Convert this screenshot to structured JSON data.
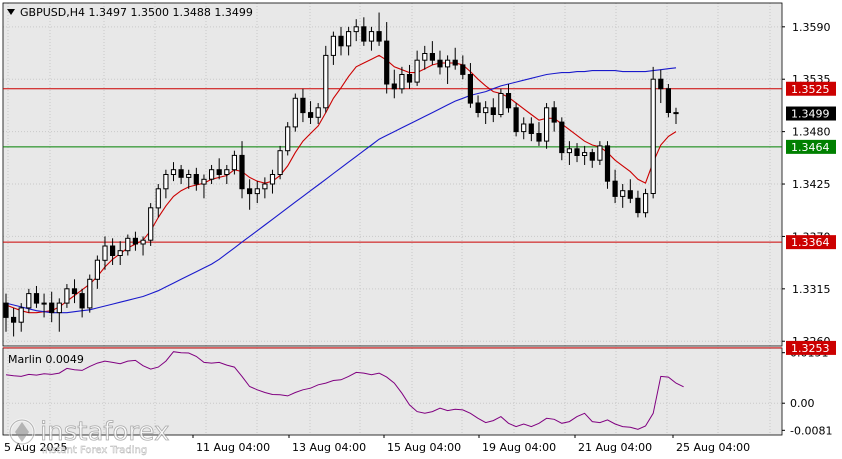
{
  "header": {
    "symbol_line": "GBPUSD,H4  1.3497 1.3500 1.3488 1.3499"
  },
  "indicator": {
    "label": "Marlin 0.0049"
  },
  "watermark": {
    "brand": "instaforex",
    "tagline": "Instant Forex Trading"
  },
  "colors": {
    "background": "#ffffff",
    "plot_background": "#e8e8e8",
    "grid": "#c9c9c9",
    "candle": "#000000",
    "ma_fast": "#cc0000",
    "ma_slow": "#1a1acc",
    "level_red": "#cc0000",
    "level_green": "#008000",
    "oscillator": "#800080"
  },
  "chart_data": [
    {
      "type": "candlestick",
      "title": "GBPUSD,H4",
      "ohlc_header": {
        "open": 1.3497,
        "high": 1.35,
        "low": 1.3488,
        "close": 1.3499
      },
      "ylim": [
        1.3255,
        1.3615
      ],
      "y_ticks": [
        1.359,
        1.3535,
        1.348,
        1.3425,
        1.337,
        1.3315,
        1.326
      ],
      "x_ticks": [
        "11 Aug 04:00",
        "13 Aug 04:00",
        "15 Aug 04:00",
        "19 Aug 04:00",
        "21 Aug 04:00",
        "25 Aug 04:00"
      ],
      "x_ticks_partial": [
        "5 Aug 2025"
      ],
      "grid": true,
      "levels": [
        {
          "value": 1.3525,
          "label": "1.3525",
          "color": "#cc0000"
        },
        {
          "value": 1.3464,
          "label": "1.3464",
          "color": "#008000"
        },
        {
          "value": 1.3364,
          "label": "1.3364",
          "color": "#cc0000"
        },
        {
          "value": 1.3253,
          "label": "1.3253",
          "color": "#cc0000"
        }
      ],
      "current_price": {
        "value": 1.3499,
        "label": "1.3499"
      },
      "candles": [
        [
          1.33,
          1.331,
          1.327,
          1.3285
        ],
        [
          1.3285,
          1.3295,
          1.3265,
          1.328
        ],
        [
          1.328,
          1.33,
          1.327,
          1.3295
        ],
        [
          1.3295,
          1.3315,
          1.329,
          1.331
        ],
        [
          1.331,
          1.3318,
          1.3295,
          1.33
        ],
        [
          1.33,
          1.331,
          1.3285,
          1.33
        ],
        [
          1.33,
          1.3312,
          1.328,
          1.329
        ],
        [
          1.329,
          1.3305,
          1.327,
          1.33
        ],
        [
          1.33,
          1.332,
          1.3295,
          1.3315
        ],
        [
          1.3315,
          1.3325,
          1.33,
          1.331
        ],
        [
          1.331,
          1.3315,
          1.3285,
          1.3295
        ],
        [
          1.3295,
          1.333,
          1.329,
          1.3325
        ],
        [
          1.3325,
          1.335,
          1.3315,
          1.3345
        ],
        [
          1.3345,
          1.337,
          1.3335,
          1.336
        ],
        [
          1.336,
          1.3368,
          1.334,
          1.335
        ],
        [
          1.335,
          1.3365,
          1.334,
          1.3355
        ],
        [
          1.3355,
          1.3372,
          1.335,
          1.3368
        ],
        [
          1.3368,
          1.3375,
          1.3355,
          1.3362
        ],
        [
          1.3362,
          1.337,
          1.335,
          1.3366
        ],
        [
          1.3366,
          1.3405,
          1.336,
          1.34
        ],
        [
          1.34,
          1.3425,
          1.339,
          1.342
        ],
        [
          1.342,
          1.344,
          1.341,
          1.3435
        ],
        [
          1.3435,
          1.3448,
          1.3428,
          1.344
        ],
        [
          1.344,
          1.3445,
          1.3425,
          1.3432
        ],
        [
          1.3432,
          1.344,
          1.342,
          1.3435
        ],
        [
          1.3435,
          1.3442,
          1.3418,
          1.3425
        ],
        [
          1.3425,
          1.3435,
          1.341,
          1.343
        ],
        [
          1.343,
          1.3445,
          1.3425,
          1.344
        ],
        [
          1.344,
          1.3452,
          1.343,
          1.3435
        ],
        [
          1.3435,
          1.3445,
          1.3425,
          1.344
        ],
        [
          1.344,
          1.346,
          1.3435,
          1.3455
        ],
        [
          1.3455,
          1.347,
          1.341,
          1.342
        ],
        [
          1.342,
          1.343,
          1.3398,
          1.3415
        ],
        [
          1.3415,
          1.3428,
          1.3405,
          1.342
        ],
        [
          1.342,
          1.3432,
          1.341,
          1.3425
        ],
        [
          1.3425,
          1.344,
          1.3415,
          1.3435
        ],
        [
          1.3435,
          1.3465,
          1.343,
          1.346
        ],
        [
          1.346,
          1.349,
          1.3455,
          1.3485
        ],
        [
          1.3485,
          1.352,
          1.348,
          1.3515
        ],
        [
          1.3515,
          1.3525,
          1.349,
          1.35
        ],
        [
          1.35,
          1.3512,
          1.3488,
          1.3495
        ],
        [
          1.3495,
          1.351,
          1.3488,
          1.3505
        ],
        [
          1.3505,
          1.357,
          1.35,
          1.356
        ],
        [
          1.356,
          1.3585,
          1.355,
          1.358
        ],
        [
          1.358,
          1.359,
          1.356,
          1.357
        ],
        [
          1.357,
          1.359,
          1.356,
          1.3585
        ],
        [
          1.3585,
          1.3598,
          1.3575,
          1.359
        ],
        [
          1.359,
          1.36,
          1.357,
          1.3575
        ],
        [
          1.3575,
          1.359,
          1.3565,
          1.3585
        ],
        [
          1.3585,
          1.3605,
          1.357,
          1.3575
        ],
        [
          1.3575,
          1.3595,
          1.352,
          1.353
        ],
        [
          1.353,
          1.3545,
          1.3515,
          1.3525
        ],
        [
          1.3525,
          1.3548,
          1.352,
          1.354
        ],
        [
          1.354,
          1.355,
          1.3525,
          1.3532
        ],
        [
          1.3532,
          1.3565,
          1.3528,
          1.3555
        ],
        [
          1.3555,
          1.357,
          1.3545,
          1.3562
        ],
        [
          1.3562,
          1.3575,
          1.355,
          1.3555
        ],
        [
          1.3555,
          1.3565,
          1.354,
          1.3548
        ],
        [
          1.3548,
          1.356,
          1.353,
          1.3555
        ],
        [
          1.3555,
          1.3568,
          1.3545,
          1.355
        ],
        [
          1.355,
          1.356,
          1.3535,
          1.354
        ],
        [
          1.354,
          1.3552,
          1.3505,
          1.351
        ],
        [
          1.351,
          1.3518,
          1.3495,
          1.35
        ],
        [
          1.35,
          1.3512,
          1.3488,
          1.3505
        ],
        [
          1.3505,
          1.3515,
          1.349,
          1.3498
        ],
        [
          1.3498,
          1.3525,
          1.3495,
          1.352
        ],
        [
          1.352,
          1.353,
          1.35,
          1.3505
        ],
        [
          1.3505,
          1.351,
          1.3475,
          1.348
        ],
        [
          1.348,
          1.3495,
          1.3472,
          1.3488
        ],
        [
          1.3488,
          1.3495,
          1.347,
          1.3478
        ],
        [
          1.3478,
          1.349,
          1.3465,
          1.347
        ],
        [
          1.347,
          1.351,
          1.3462,
          1.3505
        ],
        [
          1.3505,
          1.3512,
          1.348,
          1.349
        ],
        [
          1.349,
          1.3495,
          1.345,
          1.3458
        ],
        [
          1.3458,
          1.347,
          1.3445,
          1.3462
        ],
        [
          1.3462,
          1.3468,
          1.3448,
          1.3455
        ],
        [
          1.3455,
          1.3465,
          1.3445,
          1.3458
        ],
        [
          1.3458,
          1.3462,
          1.3442,
          1.345
        ],
        [
          1.345,
          1.347,
          1.3445,
          1.3465
        ],
        [
          1.3465,
          1.347,
          1.342,
          1.3428
        ],
        [
          1.3428,
          1.344,
          1.3405,
          1.3412
        ],
        [
          1.3412,
          1.3425,
          1.34,
          1.3418
        ],
        [
          1.3418,
          1.343,
          1.3405,
          1.341
        ],
        [
          1.341,
          1.3418,
          1.339,
          1.3395
        ],
        [
          1.3395,
          1.342,
          1.339,
          1.3415
        ],
        [
          1.3415,
          1.3548,
          1.341,
          1.3535
        ],
        [
          1.3535,
          1.3545,
          1.351,
          1.3525
        ],
        [
          1.3525,
          1.353,
          1.3495,
          1.35
        ],
        [
          1.35,
          1.3505,
          1.3488,
          1.3499
        ]
      ],
      "series": [
        {
          "values": [
            1.3298,
            1.3295,
            1.3292,
            1.329,
            1.329,
            1.3291,
            1.3292,
            1.3296,
            1.3302,
            1.3308,
            1.3314,
            1.332,
            1.3328,
            1.3338,
            1.3346,
            1.3352,
            1.3358,
            1.3362,
            1.3366,
            1.3376,
            1.339,
            1.3402,
            1.3412,
            1.3418,
            1.3422,
            1.3424,
            1.3426,
            1.343,
            1.3432,
            1.3434,
            1.344,
            1.3438,
            1.3432,
            1.3428,
            1.3426,
            1.3428,
            1.3434,
            1.3444,
            1.3458,
            1.347,
            1.3478,
            1.3486,
            1.35,
            1.3515,
            1.3526,
            1.3538,
            1.3548,
            1.3552,
            1.3556,
            1.356,
            1.3555,
            1.3548,
            1.3545,
            1.3542,
            1.3542,
            1.3546,
            1.355,
            1.3552,
            1.3552,
            1.3552,
            1.355,
            1.3543,
            1.3535,
            1.3528,
            1.3522,
            1.352,
            1.3516,
            1.351,
            1.3504,
            1.3498,
            1.3492,
            1.3494,
            1.3494,
            1.3488,
            1.3482,
            1.3476,
            1.347,
            1.3466,
            1.3464,
            1.3458,
            1.345,
            1.3444,
            1.3438,
            1.343,
            1.3426,
            1.3448,
            1.3466,
            1.3475,
            1.348
          ]
        },
        {
          "values": [
            1.33,
            1.3298,
            1.3296,
            1.3294,
            1.3292,
            1.3291,
            1.329,
            1.329,
            1.329,
            1.3291,
            1.3292,
            1.3293,
            1.3295,
            1.3297,
            1.3299,
            1.3301,
            1.3303,
            1.3305,
            1.3307,
            1.331,
            1.3313,
            1.3317,
            1.3321,
            1.3325,
            1.3329,
            1.3333,
            1.3337,
            1.3341,
            1.3346,
            1.3352,
            1.3358,
            1.3364,
            1.337,
            1.3376,
            1.3382,
            1.3388,
            1.3394,
            1.34,
            1.3406,
            1.3412,
            1.3418,
            1.3424,
            1.343,
            1.3436,
            1.3442,
            1.3448,
            1.3454,
            1.346,
            1.3466,
            1.3472,
            1.3476,
            1.348,
            1.3484,
            1.3488,
            1.3492,
            1.3496,
            1.35,
            1.3504,
            1.3508,
            1.3512,
            1.3515,
            1.3518,
            1.352,
            1.3522,
            1.3525,
            1.3528,
            1.353,
            1.3532,
            1.3534,
            1.3536,
            1.3538,
            1.354,
            1.3541,
            1.3542,
            1.3542,
            1.3543,
            1.3543,
            1.3544,
            1.3544,
            1.3544,
            1.3544,
            1.3543,
            1.3543,
            1.3543,
            1.3543,
            1.3544,
            1.3545,
            1.3546,
            1.3547
          ]
        }
      ]
    },
    {
      "type": "line",
      "title": "Marlin 0.0049",
      "ylim": [
        -0.0095,
        0.0165
      ],
      "y_ticks": [
        0.0151,
        0.0,
        -0.0081
      ],
      "grid": true,
      "series": [
        {
          "values": [
            0.0085,
            0.0082,
            0.008,
            0.0086,
            0.0084,
            0.0088,
            0.0086,
            0.009,
            0.0104,
            0.01,
            0.0098,
            0.011,
            0.012,
            0.0126,
            0.0122,
            0.0118,
            0.0126,
            0.0128,
            0.0112,
            0.0102,
            0.0108,
            0.0126,
            0.0154,
            0.0151,
            0.015,
            0.014,
            0.0122,
            0.012,
            0.0122,
            0.0114,
            0.0108,
            0.008,
            0.005,
            0.004,
            0.0032,
            0.0026,
            0.0025,
            0.0022,
            0.0032,
            0.004,
            0.0045,
            0.0055,
            0.006,
            0.0068,
            0.007,
            0.008,
            0.0092,
            0.009,
            0.0085,
            0.009,
            0.0078,
            0.006,
            0.003,
            -0.0005,
            -0.0025,
            -0.003,
            -0.0025,
            -0.0015,
            -0.0022,
            -0.0018,
            -0.002,
            -0.003,
            -0.0045,
            -0.0058,
            -0.0052,
            -0.004,
            -0.006,
            -0.007,
            -0.0062,
            -0.007,
            -0.006,
            -0.0045,
            -0.0048,
            -0.006,
            -0.0055,
            -0.004,
            -0.003,
            -0.0055,
            -0.0058,
            -0.005,
            -0.0062,
            -0.007,
            -0.0072,
            -0.0078,
            -0.0068,
            -0.003,
            0.008,
            0.0078,
            0.006,
            0.0049
          ]
        }
      ]
    }
  ]
}
